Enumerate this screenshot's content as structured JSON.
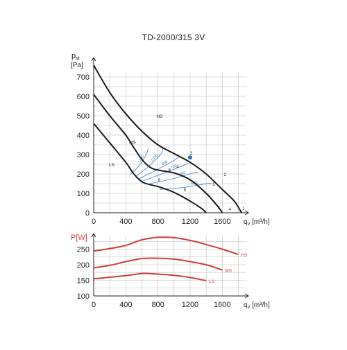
{
  "title": "TD-2000/315 3V",
  "chart_data": [
    {
      "type": "line",
      "ylabel_main": "p",
      "ylabel_sub": "st",
      "yunit": "[Pa]",
      "xlabel_main": "q",
      "xlabel_sub": "v",
      "xunit": "[m³/h]",
      "xlim": [
        0,
        1900
      ],
      "ylim": [
        0,
        800
      ],
      "xticks": [
        0,
        400,
        800,
        1200,
        1600
      ],
      "yticks": [
        0,
        100,
        200,
        300,
        400,
        500,
        600,
        700
      ],
      "fan_curves": [
        {
          "name": "HS",
          "points": [
            [
              0,
              760
            ],
            [
              200,
              620
            ],
            [
              400,
              510
            ],
            [
              600,
              420
            ],
            [
              800,
              350
            ],
            [
              1000,
              305
            ],
            [
              1200,
              260
            ],
            [
              1400,
              200
            ],
            [
              1600,
              120
            ],
            [
              1750,
              60
            ],
            [
              1840,
              0
            ]
          ]
        },
        {
          "name": "MS",
          "points": [
            [
              0,
              610
            ],
            [
              200,
              500
            ],
            [
              400,
              400
            ],
            [
              500,
              335
            ],
            [
              600,
              275
            ],
            [
              700,
              235
            ],
            [
              800,
              220
            ],
            [
              1000,
              205
            ],
            [
              1200,
              170
            ],
            [
              1400,
              100
            ],
            [
              1550,
              30
            ],
            [
              1600,
              0
            ]
          ]
        },
        {
          "name": "LS",
          "points": [
            [
              0,
              460
            ],
            [
              200,
              360
            ],
            [
              400,
              260
            ],
            [
              500,
              200
            ],
            [
              600,
              160
            ],
            [
              700,
              145
            ],
            [
              800,
              135
            ],
            [
              1000,
              105
            ],
            [
              1200,
              60
            ],
            [
              1350,
              20
            ],
            [
              1400,
              0
            ]
          ]
        }
      ],
      "system_curves": [
        {
          "name": "1200",
          "label_at": 1,
          "points": [
            [
              450,
              195
            ],
            [
              560,
              240
            ],
            [
              640,
              290
            ],
            [
              680,
              330
            ]
          ]
        },
        {
          "name": "1000",
          "label_at": 1,
          "points": [
            [
              520,
              185
            ],
            [
              700,
              245
            ],
            [
              830,
              300
            ],
            [
              860,
              330
            ]
          ]
        },
        {
          "name": "800",
          "label_at": 1,
          "points": [
            [
              560,
              175
            ],
            [
              780,
              220
            ],
            [
              1000,
              270
            ],
            [
              1060,
              290
            ]
          ]
        },
        {
          "name": "700",
          "label_at": 1,
          "points": [
            [
              620,
              165
            ],
            [
              880,
              205
            ],
            [
              1120,
              245
            ],
            [
              1180,
              255
            ]
          ]
        },
        {
          "name": "600",
          "label_at": 1,
          "points": [
            [
              700,
              150
            ],
            [
              980,
              175
            ],
            [
              1240,
              205
            ],
            [
              1300,
              210
            ]
          ]
        },
        {
          "name": "500",
          "label_at": 1,
          "points": [
            [
              820,
              120
            ],
            [
              1110,
              130
            ],
            [
              1400,
              150
            ],
            [
              1470,
              150
            ]
          ]
        }
      ],
      "points": [
        {
          "label": "1",
          "x": 1850,
          "y": 15
        },
        {
          "label": "2",
          "x": 1620,
          "y": 190
        },
        {
          "label": "3",
          "x": 1200,
          "y": 300
        },
        {
          "label": "4",
          "x": 1680,
          "y": 10
        },
        {
          "label": "4",
          "x": 1030,
          "y": 230
        },
        {
          "label": "5",
          "x": 1480,
          "y": 140
        },
        {
          "label": "6",
          "x": 930,
          "y": 215
        },
        {
          "label": "7",
          "x": 1540,
          "y": 20
        },
        {
          "label": "8",
          "x": 1120,
          "y": 110
        },
        {
          "label": "9",
          "x": 800,
          "y": 160
        }
      ],
      "highlight_point": {
        "x": 1200,
        "y": 285,
        "color": "#2e6fb5"
      }
    },
    {
      "type": "line",
      "ylabel": "P[W]",
      "xlabel_main": "q",
      "xlabel_sub": "v",
      "xunit": "[m³/h]",
      "xlim": [
        0,
        1900
      ],
      "ylim": [
        100,
        300
      ],
      "xticks": [
        0,
        400,
        800,
        1200,
        1600
      ],
      "yticks": [
        100,
        150,
        200,
        250
      ],
      "series": [
        {
          "name": "HS",
          "points": [
            [
              0,
              244
            ],
            [
              200,
              252
            ],
            [
              400,
              262
            ],
            [
              600,
              280
            ],
            [
              800,
              288
            ],
            [
              1000,
              287
            ],
            [
              1200,
              278
            ],
            [
              1400,
              265
            ],
            [
              1600,
              250
            ],
            [
              1800,
              233
            ]
          ]
        },
        {
          "name": "MS",
          "points": [
            [
              0,
              190
            ],
            [
              200,
              198
            ],
            [
              400,
              210
            ],
            [
              600,
              220
            ],
            [
              800,
              221
            ],
            [
              1000,
              218
            ],
            [
              1200,
              210
            ],
            [
              1400,
              200
            ],
            [
              1600,
              183
            ]
          ]
        },
        {
          "name": "LS",
          "points": [
            [
              0,
              155
            ],
            [
              200,
              160
            ],
            [
              400,
              165
            ],
            [
              600,
              172
            ],
            [
              800,
              170
            ],
            [
              1000,
              166
            ],
            [
              1200,
              159
            ],
            [
              1400,
              149
            ]
          ]
        }
      ]
    }
  ],
  "colors": {
    "axis": "#222222",
    "grid": "#bbbbbb",
    "fan_curve": "#1a1a1a",
    "system_curve": "#4f8cc7",
    "power_curve": "#d23b3b",
    "power_label": "#d23b3b"
  }
}
